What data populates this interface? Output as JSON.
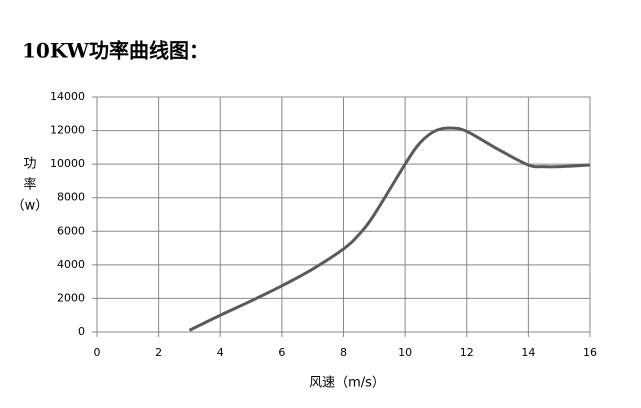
{
  "chart_data": {
    "type": "line",
    "title": "10KW功率曲线图：",
    "xlabel": "风速（m/s）",
    "ylabel": [
      "功",
      "率",
      "（w）"
    ],
    "x": [
      3,
      4,
      5,
      6,
      7,
      8,
      8.5,
      9,
      10,
      10.5,
      11,
      11.5,
      12,
      13,
      14,
      14.5,
      15,
      16
    ],
    "series": [
      {
        "name": "功率",
        "color": "#5a5a5a",
        "values": [
          100,
          1000,
          1850,
          2750,
          3750,
          4950,
          5800,
          7000,
          10000,
          11300,
          12000,
          12150,
          11950,
          10900,
          9950,
          9850,
          9850,
          9950
        ]
      }
    ],
    "xlim": [
      0,
      16
    ],
    "xticks": [
      0,
      2,
      4,
      6,
      8,
      10,
      12,
      14,
      16
    ],
    "ylim": [
      0,
      14000
    ],
    "yticks": [
      0,
      2000,
      4000,
      6000,
      8000,
      10000,
      12000,
      14000
    ],
    "grid": true
  }
}
